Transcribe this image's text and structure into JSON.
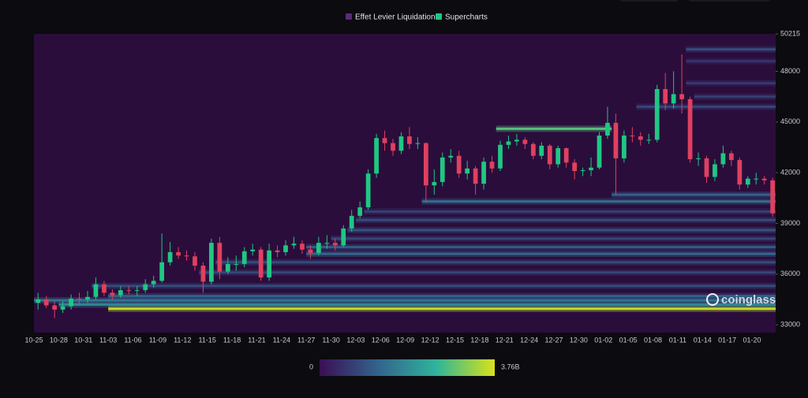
{
  "chart_data": {
    "type": "liquidation-heatmap",
    "legend": [
      {
        "name": "Effet Levier Liquidation",
        "color": "#5b2a78"
      },
      {
        "name": "Supercharts",
        "color": "#1fc783"
      }
    ],
    "watermark": "coinglass",
    "categories": [
      "10-25",
      null,
      null,
      "10-28",
      null,
      null,
      "10-31",
      null,
      null,
      "11-03",
      null,
      null,
      "11-06",
      null,
      null,
      "11-09",
      null,
      null,
      "11-12",
      null,
      null,
      "11-15",
      null,
      null,
      "11-18",
      null,
      null,
      "11-21",
      null,
      null,
      "11-24",
      null,
      null,
      "11-27",
      null,
      null,
      "11-30",
      null,
      null,
      "12-03",
      null,
      null,
      "12-06",
      null,
      null,
      "12-09",
      null,
      null,
      "12-12",
      null,
      null,
      "12-15",
      null,
      null,
      "12-18",
      null,
      null,
      "12-21",
      null,
      null,
      "12-24",
      null,
      null,
      "12-27",
      null,
      null,
      "12-30",
      null,
      null,
      "01-02",
      null,
      null,
      "01-05",
      null,
      null,
      "01-08",
      null,
      null,
      "01-11",
      null,
      null,
      "01-14",
      null,
      null,
      "01-17",
      null,
      null,
      "01-20",
      null,
      null
    ],
    "ylim": [
      32540,
      50215
    ],
    "yticks": [
      33000,
      36000,
      39000,
      42000,
      45000,
      48000,
      50215
    ],
    "up_color": "#1fc783",
    "down_color": "#e0405f",
    "candles": {
      "open": [
        34300,
        34500,
        34150,
        33900,
        34100,
        34550,
        34500,
        34650,
        35400,
        34900,
        34750,
        35050,
        35000,
        35050,
        35400,
        35600,
        36700,
        37300,
        37100,
        37050,
        36500,
        35550,
        37850,
        36150,
        36600,
        36600,
        37350,
        37450,
        35800,
        37400,
        37300,
        37700,
        37800,
        37450,
        37250,
        37850,
        37850,
        37700,
        38700,
        39450,
        39950,
        41950,
        44050,
        43750,
        43300,
        44150,
        43700,
        43750,
        41250,
        41450,
        42900,
        43000,
        41950,
        42250,
        41350,
        42650,
        42250,
        43650,
        43850,
        43950,
        43700,
        43000,
        43600,
        42500,
        43450,
        42600,
        42100,
        42150,
        42300,
        44200,
        44950,
        42850,
        44200,
        44150,
        43950,
        43950,
        46950,
        46100,
        46650,
        46350,
        42800,
        42850,
        41750,
        42500,
        43150,
        42750,
        41300,
        41650,
        41650,
        41550
      ],
      "high": [
        34900,
        34700,
        34400,
        34400,
        34800,
        34900,
        35000,
        35800,
        35600,
        35100,
        35300,
        35300,
        35300,
        35700,
        35900,
        38400,
        37900,
        37600,
        37400,
        37300,
        36700,
        38100,
        38200,
        37000,
        37100,
        37600,
        37800,
        37600,
        37800,
        37700,
        38000,
        38200,
        38000,
        37700,
        38200,
        38300,
        38100,
        38900,
        39800,
        40300,
        42200,
        44300,
        44500,
        44000,
        44400,
        44700,
        44100,
        43800,
        42200,
        43200,
        43400,
        43300,
        42700,
        42400,
        42900,
        43000,
        43900,
        44200,
        44300,
        44100,
        43800,
        43800,
        43700,
        43600,
        43500,
        42800,
        42300,
        42900,
        44400,
        45900,
        45500,
        44500,
        44700,
        44400,
        44300,
        47200,
        47900,
        48000,
        49000,
        46500,
        43200,
        43000,
        42800,
        43600,
        43300,
        42900,
        41800,
        42000,
        41800,
        41700
      ],
      "low": [
        33900,
        34000,
        33400,
        33700,
        33900,
        34200,
        34300,
        34500,
        34700,
        34500,
        34600,
        34800,
        34700,
        34900,
        35200,
        35500,
        36500,
        36900,
        36800,
        36200,
        34900,
        35400,
        35700,
        36000,
        36200,
        36400,
        37100,
        35600,
        35600,
        37000,
        37100,
        37500,
        37200,
        36900,
        37100,
        37500,
        37400,
        37600,
        38500,
        39300,
        39800,
        41700,
        43300,
        43000,
        43100,
        43400,
        43400,
        40300,
        40700,
        41200,
        42600,
        41700,
        41600,
        40700,
        41000,
        42000,
        42100,
        43400,
        43600,
        43400,
        42800,
        42800,
        42200,
        42300,
        42300,
        41600,
        41800,
        41800,
        42200,
        44000,
        40700,
        42600,
        43800,
        43600,
        43700,
        43800,
        45700,
        45800,
        45500,
        42600,
        42400,
        41400,
        41500,
        42300,
        42400,
        41000,
        41100,
        41300,
        41300,
        39400
      ],
      "close": [
        34500,
        34150,
        33900,
        34100,
        34550,
        34500,
        34650,
        35400,
        34900,
        34750,
        35050,
        35000,
        35050,
        35400,
        35600,
        36700,
        37300,
        37100,
        37050,
        36500,
        35550,
        37850,
        36150,
        36600,
        36600,
        37350,
        37450,
        35800,
        37400,
        37300,
        37700,
        37800,
        37450,
        37250,
        37850,
        37850,
        37700,
        38700,
        39450,
        39950,
        41950,
        44050,
        43750,
        43300,
        44150,
        43700,
        43750,
        41250,
        41450,
        42900,
        43000,
        41950,
        42250,
        41350,
        42650,
        42250,
        43650,
        43850,
        43950,
        43700,
        43000,
        43600,
        42500,
        43450,
        42600,
        42100,
        42150,
        42300,
        44200,
        44950,
        42850,
        44200,
        44150,
        43950,
        43950,
        46950,
        46100,
        46650,
        46350,
        42800,
        42850,
        41750,
        42500,
        43150,
        42750,
        41300,
        41650,
        41650,
        41550,
        39600
      ]
    },
    "bands": [
      {
        "price": 33950,
        "start": 9,
        "end": 89,
        "value": 3600000000
      },
      {
        "price": 34200,
        "start": 3,
        "end": 89,
        "value": 1800000000
      },
      {
        "price": 34450,
        "start": 0,
        "end": 89,
        "value": 1500000000
      },
      {
        "price": 34700,
        "start": 9,
        "end": 89,
        "value": 1200000000
      },
      {
        "price": 35300,
        "start": 7,
        "end": 89,
        "value": 900000000
      },
      {
        "price": 36100,
        "start": 20,
        "end": 89,
        "value": 800000000
      },
      {
        "price": 36700,
        "start": 22,
        "end": 89,
        "value": 900000000
      },
      {
        "price": 37200,
        "start": 33,
        "end": 89,
        "value": 1300000000
      },
      {
        "price": 37600,
        "start": 33,
        "end": 89,
        "value": 1100000000
      },
      {
        "price": 38100,
        "start": 36,
        "end": 89,
        "value": 800000000
      },
      {
        "price": 38600,
        "start": 38,
        "end": 89,
        "value": 1000000000
      },
      {
        "price": 39200,
        "start": 39,
        "end": 89,
        "value": 900000000
      },
      {
        "price": 39700,
        "start": 40,
        "end": 89,
        "value": 700000000
      },
      {
        "price": 40300,
        "start": 47,
        "end": 89,
        "value": 1400000000
      },
      {
        "price": 40700,
        "start": 70,
        "end": 89,
        "value": 1200000000
      },
      {
        "price": 44600,
        "start": 56,
        "end": 69,
        "value": 2800000000
      },
      {
        "price": 45900,
        "start": 73,
        "end": 89,
        "value": 800000000
      },
      {
        "price": 46500,
        "start": 80,
        "end": 89,
        "value": 700000000
      },
      {
        "price": 47300,
        "start": 79,
        "end": 89,
        "value": 600000000
      },
      {
        "price": 48600,
        "start": 79,
        "end": 89,
        "value": 500000000
      },
      {
        "price": 49300,
        "start": 79,
        "end": 89,
        "value": 900000000
      }
    ],
    "colorscale": [
      "#3a0f52",
      "#33638d",
      "#2fb49c",
      "#d8e219"
    ],
    "zlim": [
      0,
      3760000000
    ],
    "zticks": [
      0,
      {
        "value": 3760000000,
        "label": "3.76B"
      }
    ]
  }
}
